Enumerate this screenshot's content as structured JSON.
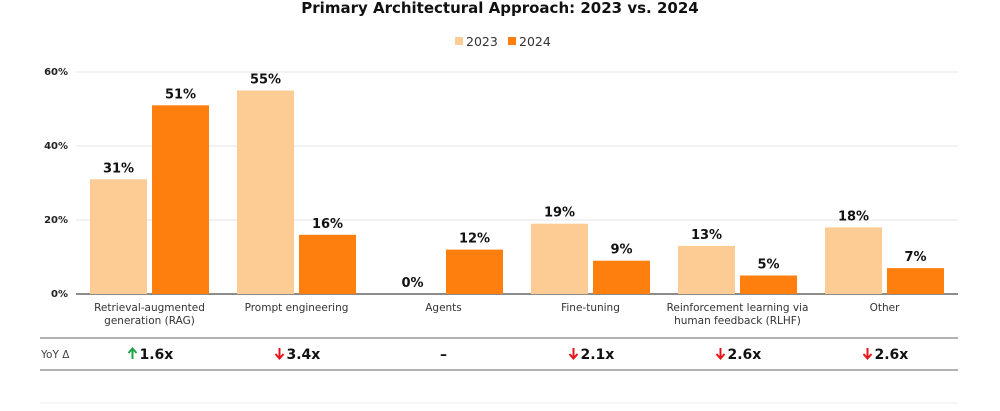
{
  "chart_data": {
    "type": "bar",
    "title": "Primary Architectural Approach: 2023 vs. 2024",
    "categories": [
      [
        "Retrieval-augmented",
        "generation (RAG)"
      ],
      [
        "Prompt engineering"
      ],
      [
        "Agents"
      ],
      [
        "Fine-tuning"
      ],
      [
        "Reinforcement learning via",
        "human feedback (RLHF)"
      ],
      [
        "Other"
      ]
    ],
    "series": [
      {
        "name": "2023",
        "color": "#FDCB94",
        "values": [
          31,
          55,
          0,
          19,
          13,
          18
        ]
      },
      {
        "name": "2024",
        "color": "#FF7F0E",
        "values": [
          51,
          16,
          12,
          9,
          5,
          7
        ]
      }
    ],
    "data_labels": [
      [
        "31%",
        "55%",
        "0%",
        "19%",
        "13%",
        "18%"
      ],
      [
        "51%",
        "16%",
        "12%",
        "9%",
        "5%",
        "7%"
      ]
    ],
    "ylim": [
      0,
      60
    ],
    "yticks": [
      0,
      20,
      40,
      60
    ],
    "ytick_labels": [
      "0%",
      "20%",
      "40%",
      "60%"
    ],
    "grid": true,
    "legend_position": "top-center",
    "xlabel": "",
    "ylabel": "",
    "yoy": {
      "label": "YoY Δ",
      "values": [
        {
          "dir": "up",
          "text": "1.6x"
        },
        {
          "dir": "down",
          "text": "3.4x"
        },
        {
          "dir": "none",
          "text": "–"
        },
        {
          "dir": "down",
          "text": "2.1x"
        },
        {
          "dir": "down",
          "text": "2.6x"
        },
        {
          "dir": "down",
          "text": "2.6x"
        }
      ],
      "up_color": "#1FA34A",
      "down_color": "#E8141B"
    }
  }
}
